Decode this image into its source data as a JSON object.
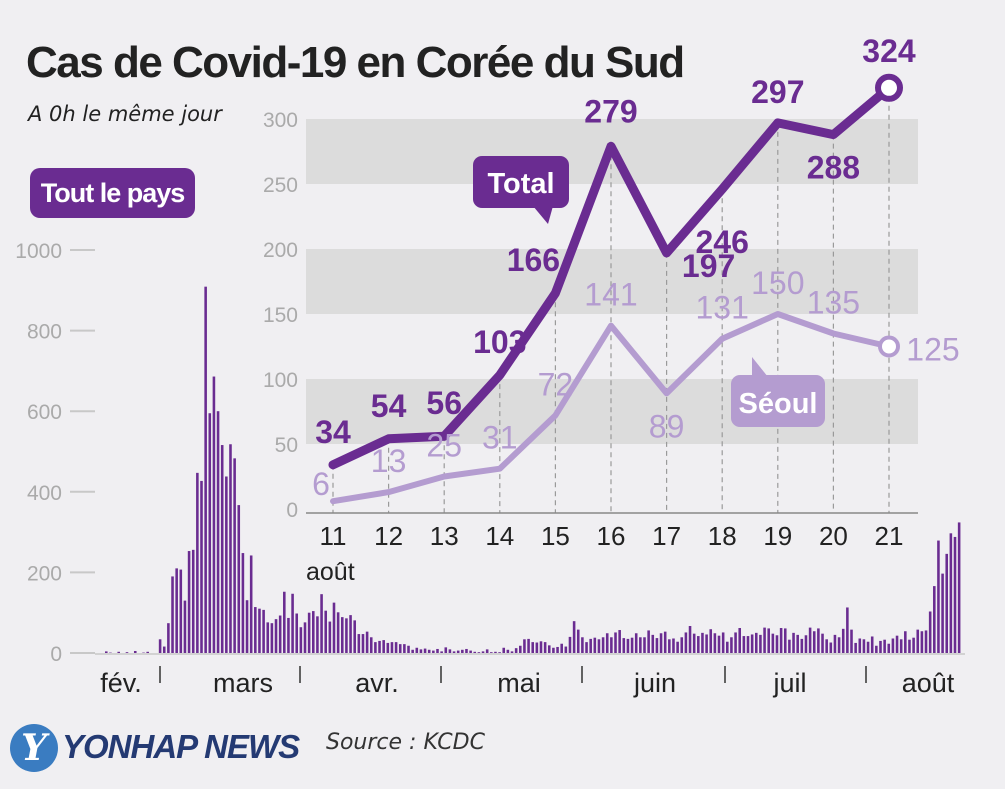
{
  "header": {
    "title": "Cas de Covid-19 en Corée du Sud",
    "subtitle": "A 0h le même jour",
    "badge": "Tout le pays"
  },
  "footer": {
    "logo_glyph": "Y",
    "logo_text": "YONHAP NEWS",
    "source": "Source : KCDC"
  },
  "colors": {
    "total": "#6a2c91",
    "seoul": "#b49cd0",
    "background": "#f0eff2",
    "band": "#dcdcdc"
  },
  "chart_data": [
    {
      "type": "line",
      "title": "Cas de Covid-19 en Corée du Sud",
      "x": [
        11,
        12,
        13,
        14,
        15,
        16,
        17,
        18,
        19,
        20,
        21
      ],
      "x_tick_labels": [
        "11",
        "12",
        "13",
        "14",
        "15",
        "16",
        "17",
        "18",
        "19",
        "20",
        "21"
      ],
      "xlabel": "août",
      "ylim": [
        0,
        300
      ],
      "y_ticks": [
        0,
        50,
        100,
        150,
        200,
        250,
        300
      ],
      "grid": "alternating horizontal bands",
      "series": [
        {
          "name": "Total",
          "values": [
            34,
            54,
            56,
            103,
            166,
            279,
            197,
            246,
            297,
            288,
            324
          ],
          "labels": [
            "34",
            "54",
            "56",
            "103",
            "166",
            "279",
            "197",
            "246",
            "297",
            "288",
            "324"
          ]
        },
        {
          "name": "Séoul",
          "values": [
            6,
            13,
            25,
            31,
            72,
            141,
            89,
            131,
            150,
            135,
            125
          ],
          "labels": [
            "6",
            "13",
            "25",
            "31",
            "72",
            "141",
            "89",
            "131",
            "150",
            "135",
            "125"
          ]
        }
      ]
    },
    {
      "type": "bar",
      "title": "Tout le pays",
      "months": [
        "fév.",
        "mars",
        "avr.",
        "mai",
        "juin",
        "juil",
        "août"
      ],
      "ylim": [
        0,
        1000
      ],
      "y_ticks": [
        0,
        200,
        400,
        600,
        800,
        1000
      ],
      "values": [
        4,
        1,
        0,
        3,
        0,
        2,
        0,
        5,
        0,
        1,
        3,
        0,
        0,
        34,
        16,
        74,
        190,
        210,
        207,
        130,
        253,
        256,
        447,
        427,
        909,
        595,
        686,
        600,
        516,
        438,
        518,
        483,
        367,
        248,
        131,
        242,
        114,
        110,
        107,
        76,
        74,
        84,
        93,
        152,
        87,
        147,
        98,
        64,
        76,
        100,
        104,
        91,
        146,
        105,
        78,
        125,
        101,
        89,
        86,
        94,
        81,
        47,
        47,
        53,
        39,
        27,
        30,
        32,
        25,
        27,
        27,
        22,
        22,
        18,
        8,
        13,
        9,
        11,
        8,
        6,
        10,
        4,
        14,
        9,
        4,
        6,
        8,
        10,
        6,
        3,
        2,
        4,
        9,
        2,
        3,
        2,
        13,
        8,
        4,
        12,
        18,
        34,
        35,
        27,
        26,
        29,
        27,
        19,
        13,
        15,
        23,
        16,
        40,
        79,
        58,
        39,
        27,
        35,
        38,
        34,
        39,
        49,
        39,
        51,
        57,
        37,
        35,
        38,
        49,
        39,
        39,
        56,
        45,
        37,
        49,
        53,
        34,
        36,
        28,
        39,
        51,
        67,
        48,
        42,
        50,
        46,
        59,
        49,
        43,
        51,
        28,
        39,
        51,
        62,
        42,
        42,
        46,
        50,
        45,
        63,
        61,
        48,
        44,
        62,
        61,
        33,
        50,
        45,
        35,
        44,
        63,
        54,
        61,
        48,
        34,
        26,
        45,
        39,
        60,
        113,
        58,
        25,
        36,
        34,
        28,
        41,
        18,
        30,
        33,
        23,
        36,
        43,
        34,
        54,
        33,
        38,
        58,
        54,
        56,
        103,
        166,
        279,
        197,
        246,
        297,
        288,
        324
      ]
    }
  ]
}
